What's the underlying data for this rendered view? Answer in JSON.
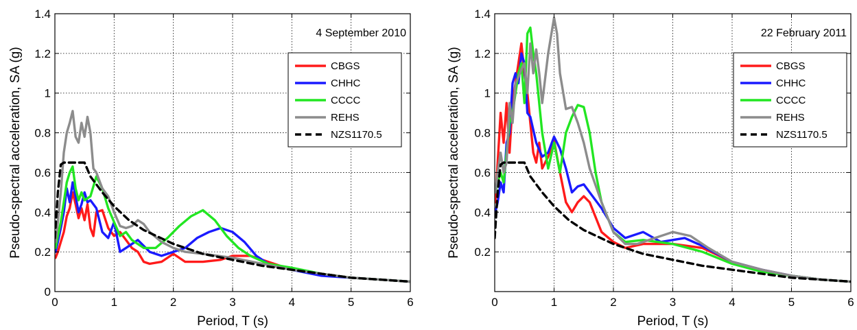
{
  "chart_data": [
    {
      "type": "line",
      "annotation": "4 September 2010",
      "xlabel": "Period, T (s)",
      "ylabel": "Pseudo-spectral acceleration, SA (g)",
      "xlim": [
        0,
        6
      ],
      "ylim": [
        0,
        1.4
      ],
      "xticks": [
        "0",
        "1",
        "2",
        "3",
        "4",
        "5",
        "6"
      ],
      "yticks": [
        "0",
        "0.2",
        "0.4",
        "0.6",
        "0.8",
        "1",
        "1.2",
        "1.4"
      ],
      "grid": true,
      "legend_position": "top-right",
      "series": [
        {
          "name": "CBGS",
          "color": "#ff1a1a",
          "dash": false,
          "x": [
            0.01,
            0.05,
            0.1,
            0.15,
            0.2,
            0.25,
            0.3,
            0.35,
            0.4,
            0.45,
            0.5,
            0.55,
            0.6,
            0.65,
            0.7,
            0.8,
            0.9,
            1.0,
            1.1,
            1.2,
            1.3,
            1.4,
            1.5,
            1.6,
            1.8,
            2.0,
            2.2,
            2.5,
            2.8,
            3.0,
            3.3,
            3.5,
            4.0,
            4.5,
            5.0,
            5.5,
            6.0
          ],
          "y": [
            0.17,
            0.2,
            0.25,
            0.3,
            0.38,
            0.42,
            0.5,
            0.44,
            0.37,
            0.42,
            0.36,
            0.44,
            0.32,
            0.28,
            0.4,
            0.41,
            0.32,
            0.28,
            0.3,
            0.26,
            0.22,
            0.2,
            0.15,
            0.14,
            0.15,
            0.19,
            0.15,
            0.15,
            0.16,
            0.18,
            0.18,
            0.16,
            0.11,
            0.09,
            0.07,
            0.06,
            0.05
          ]
        },
        {
          "name": "CHHC",
          "color": "#1a1aff",
          "dash": false,
          "x": [
            0.01,
            0.05,
            0.1,
            0.15,
            0.2,
            0.25,
            0.3,
            0.35,
            0.4,
            0.45,
            0.5,
            0.55,
            0.6,
            0.7,
            0.8,
            0.9,
            1.0,
            1.1,
            1.2,
            1.4,
            1.6,
            1.8,
            2.0,
            2.2,
            2.4,
            2.6,
            2.8,
            3.0,
            3.2,
            3.4,
            3.6,
            4.0,
            4.5,
            5.0,
            5.5,
            6.0
          ],
          "y": [
            0.2,
            0.25,
            0.32,
            0.4,
            0.52,
            0.45,
            0.55,
            0.48,
            0.4,
            0.44,
            0.5,
            0.45,
            0.46,
            0.42,
            0.3,
            0.27,
            0.35,
            0.2,
            0.22,
            0.26,
            0.2,
            0.18,
            0.2,
            0.22,
            0.27,
            0.3,
            0.32,
            0.3,
            0.25,
            0.18,
            0.14,
            0.11,
            0.08,
            0.07,
            0.06,
            0.05
          ]
        },
        {
          "name": "CCCC",
          "color": "#22e622",
          "dash": false,
          "x": [
            0.01,
            0.05,
            0.1,
            0.15,
            0.2,
            0.25,
            0.3,
            0.35,
            0.4,
            0.45,
            0.5,
            0.6,
            0.7,
            0.8,
            0.9,
            1.0,
            1.1,
            1.2,
            1.3,
            1.5,
            1.7,
            1.9,
            2.1,
            2.3,
            2.5,
            2.7,
            2.9,
            3.1,
            3.3,
            3.6,
            4.0,
            4.5,
            5.0,
            5.5,
            6.0
          ],
          "y": [
            0.22,
            0.28,
            0.35,
            0.45,
            0.55,
            0.6,
            0.63,
            0.52,
            0.46,
            0.5,
            0.46,
            0.48,
            0.58,
            0.52,
            0.42,
            0.35,
            0.28,
            0.3,
            0.26,
            0.22,
            0.22,
            0.27,
            0.33,
            0.38,
            0.41,
            0.36,
            0.28,
            0.22,
            0.18,
            0.14,
            0.12,
            0.09,
            0.07,
            0.06,
            0.05
          ]
        },
        {
          "name": "REHS",
          "color": "#8c8c8c",
          "dash": false,
          "x": [
            0.01,
            0.05,
            0.1,
            0.15,
            0.2,
            0.25,
            0.3,
            0.35,
            0.4,
            0.45,
            0.5,
            0.55,
            0.6,
            0.65,
            0.7,
            0.8,
            0.9,
            1.0,
            1.1,
            1.2,
            1.3,
            1.4,
            1.5,
            1.6,
            1.8,
            2.0,
            2.2,
            2.5,
            3.0,
            3.5,
            4.0,
            4.5,
            5.0,
            5.5,
            6.0
          ],
          "y": [
            0.25,
            0.35,
            0.5,
            0.7,
            0.8,
            0.85,
            0.91,
            0.78,
            0.75,
            0.85,
            0.78,
            0.88,
            0.8,
            0.62,
            0.6,
            0.52,
            0.48,
            0.4,
            0.33,
            0.32,
            0.33,
            0.36,
            0.34,
            0.3,
            0.25,
            0.22,
            0.2,
            0.19,
            0.17,
            0.14,
            0.11,
            0.09,
            0.07,
            0.06,
            0.05
          ]
        },
        {
          "name": "NZS1170.5",
          "color": "#000000",
          "dash": true,
          "x": [
            0.0,
            0.05,
            0.1,
            0.15,
            0.3,
            0.5,
            0.6,
            0.8,
            1.0,
            1.25,
            1.5,
            2.0,
            2.5,
            3.0,
            3.5,
            4.0,
            4.5,
            5.0,
            5.5,
            6.0
          ],
          "y": [
            0.27,
            0.5,
            0.64,
            0.65,
            0.65,
            0.65,
            0.58,
            0.5,
            0.43,
            0.36,
            0.31,
            0.24,
            0.19,
            0.16,
            0.13,
            0.11,
            0.09,
            0.07,
            0.06,
            0.05
          ]
        }
      ]
    },
    {
      "type": "line",
      "annotation": "22 February 2011",
      "xlabel": "Period, T (s)",
      "ylabel": "Pseudo-spectral acceleration, SA (g)",
      "xlim": [
        0,
        6
      ],
      "ylim": [
        0,
        1.4
      ],
      "xticks": [
        "0",
        "1",
        "2",
        "3",
        "4",
        "5",
        "6"
      ],
      "yticks": [
        "0.2",
        "0.4",
        "0.6",
        "0.8",
        "1",
        "1.2",
        "1.4"
      ],
      "grid": true,
      "legend_position": "top-right",
      "series": [
        {
          "name": "CBGS",
          "color": "#ff1a1a",
          "dash": false,
          "x": [
            0.01,
            0.05,
            0.1,
            0.15,
            0.2,
            0.25,
            0.3,
            0.35,
            0.4,
            0.45,
            0.5,
            0.55,
            0.6,
            0.65,
            0.7,
            0.75,
            0.8,
            0.9,
            1.0,
            1.1,
            1.2,
            1.3,
            1.4,
            1.5,
            1.6,
            1.8,
            2.0,
            2.2,
            2.5,
            3.0,
            3.5,
            4.0,
            4.5,
            5.0,
            5.5,
            6.0
          ],
          "y": [
            0.45,
            0.65,
            0.9,
            0.75,
            0.95,
            0.7,
            0.95,
            1.05,
            1.15,
            1.25,
            1.1,
            1.0,
            0.85,
            0.7,
            0.65,
            0.75,
            0.62,
            0.68,
            0.76,
            0.6,
            0.45,
            0.4,
            0.45,
            0.48,
            0.45,
            0.3,
            0.25,
            0.22,
            0.24,
            0.24,
            0.22,
            0.15,
            0.11,
            0.08,
            0.06,
            0.05
          ]
        },
        {
          "name": "CHHC",
          "color": "#1a1aff",
          "dash": false,
          "x": [
            0.01,
            0.05,
            0.1,
            0.15,
            0.2,
            0.25,
            0.3,
            0.35,
            0.4,
            0.45,
            0.5,
            0.55,
            0.6,
            0.7,
            0.8,
            0.9,
            1.0,
            1.1,
            1.2,
            1.3,
            1.4,
            1.5,
            1.6,
            1.7,
            1.8,
            2.0,
            2.2,
            2.5,
            2.8,
            3.0,
            3.2,
            3.5,
            4.0,
            4.5,
            5.0,
            5.5,
            6.0
          ],
          "y": [
            0.4,
            0.45,
            0.55,
            0.5,
            0.75,
            0.8,
            1.05,
            1.1,
            1.05,
            1.2,
            1.15,
            0.9,
            0.88,
            0.75,
            0.68,
            0.7,
            0.78,
            0.72,
            0.62,
            0.5,
            0.53,
            0.54,
            0.5,
            0.46,
            0.42,
            0.32,
            0.27,
            0.3,
            0.25,
            0.26,
            0.27,
            0.23,
            0.15,
            0.11,
            0.08,
            0.06,
            0.05
          ]
        },
        {
          "name": "CCCC",
          "color": "#22e622",
          "dash": false,
          "x": [
            0.01,
            0.05,
            0.1,
            0.15,
            0.2,
            0.25,
            0.3,
            0.35,
            0.4,
            0.45,
            0.5,
            0.55,
            0.6,
            0.65,
            0.7,
            0.8,
            0.9,
            1.0,
            1.1,
            1.2,
            1.3,
            1.4,
            1.5,
            1.6,
            1.7,
            1.8,
            2.0,
            2.2,
            2.5,
            3.0,
            3.5,
            4.0,
            4.5,
            5.0,
            5.5,
            6.0
          ],
          "y": [
            0.5,
            0.55,
            0.6,
            0.55,
            0.7,
            0.85,
            0.9,
            1.0,
            1.1,
            1.15,
            0.95,
            1.3,
            1.33,
            1.2,
            1.1,
            0.8,
            0.62,
            0.75,
            0.6,
            0.8,
            0.88,
            0.94,
            0.93,
            0.8,
            0.6,
            0.45,
            0.3,
            0.25,
            0.26,
            0.24,
            0.2,
            0.14,
            0.1,
            0.08,
            0.06,
            0.05
          ]
        },
        {
          "name": "REHS",
          "color": "#8c8c8c",
          "dash": false,
          "x": [
            0.01,
            0.05,
            0.1,
            0.15,
            0.2,
            0.25,
            0.3,
            0.35,
            0.4,
            0.45,
            0.5,
            0.55,
            0.6,
            0.65,
            0.7,
            0.75,
            0.8,
            0.9,
            1.0,
            1.05,
            1.1,
            1.2,
            1.3,
            1.4,
            1.5,
            1.6,
            1.8,
            2.0,
            2.2,
            2.4,
            2.7,
            3.0,
            3.3,
            3.6,
            4.0,
            4.5,
            5.0,
            5.5,
            6.0
          ],
          "y": [
            0.5,
            0.6,
            0.7,
            0.6,
            0.65,
            0.95,
            0.85,
            1.05,
            1.08,
            1.12,
            1.15,
            1.0,
            1.25,
            1.1,
            1.22,
            1.1,
            0.95,
            1.2,
            1.38,
            1.3,
            1.1,
            0.92,
            0.93,
            0.85,
            0.75,
            0.62,
            0.45,
            0.3,
            0.24,
            0.24,
            0.27,
            0.3,
            0.28,
            0.22,
            0.15,
            0.11,
            0.08,
            0.06,
            0.05
          ]
        },
        {
          "name": "NZS1170.5",
          "color": "#000000",
          "dash": true,
          "x": [
            0.0,
            0.05,
            0.1,
            0.15,
            0.3,
            0.5,
            0.6,
            0.8,
            1.0,
            1.25,
            1.5,
            2.0,
            2.5,
            3.0,
            3.5,
            4.0,
            4.5,
            5.0,
            5.5,
            6.0
          ],
          "y": [
            0.27,
            0.5,
            0.64,
            0.65,
            0.65,
            0.65,
            0.58,
            0.5,
            0.43,
            0.36,
            0.31,
            0.24,
            0.19,
            0.16,
            0.13,
            0.11,
            0.09,
            0.07,
            0.06,
            0.05
          ]
        }
      ]
    }
  ]
}
